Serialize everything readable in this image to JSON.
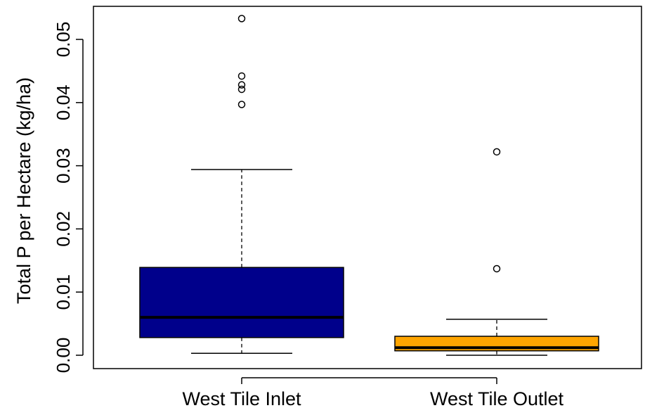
{
  "chart_data": {
    "type": "boxplot",
    "title": "",
    "xlabel": "",
    "ylabel": "Total P per Hectare (kg/ha)",
    "ylim": [
      -0.002,
      0.055
    ],
    "yticks": [
      "0.00",
      "0.01",
      "0.02",
      "0.03",
      "0.04",
      "0.05"
    ],
    "ytick_values": [
      0.0,
      0.01,
      0.02,
      0.03,
      0.04,
      0.05
    ],
    "grid": false,
    "categories": [
      "West Tile Inlet",
      "West Tile Outlet"
    ],
    "boxes": [
      {
        "name": "West Tile Inlet",
        "whisker_low": 0.0003,
        "q1": 0.0028,
        "median": 0.006,
        "q3": 0.0139,
        "whisker_high": 0.0294,
        "outliers": [
          0.0397,
          0.0421,
          0.0428,
          0.0442,
          0.0533
        ],
        "color": "#00008B"
      },
      {
        "name": "West Tile Outlet",
        "whisker_low": 0.0,
        "q1": 0.0007,
        "median": 0.0012,
        "q3": 0.003,
        "whisker_high": 0.0057,
        "outliers": [
          0.0137,
          0.0322
        ],
        "color": "#FFA500"
      }
    ]
  }
}
